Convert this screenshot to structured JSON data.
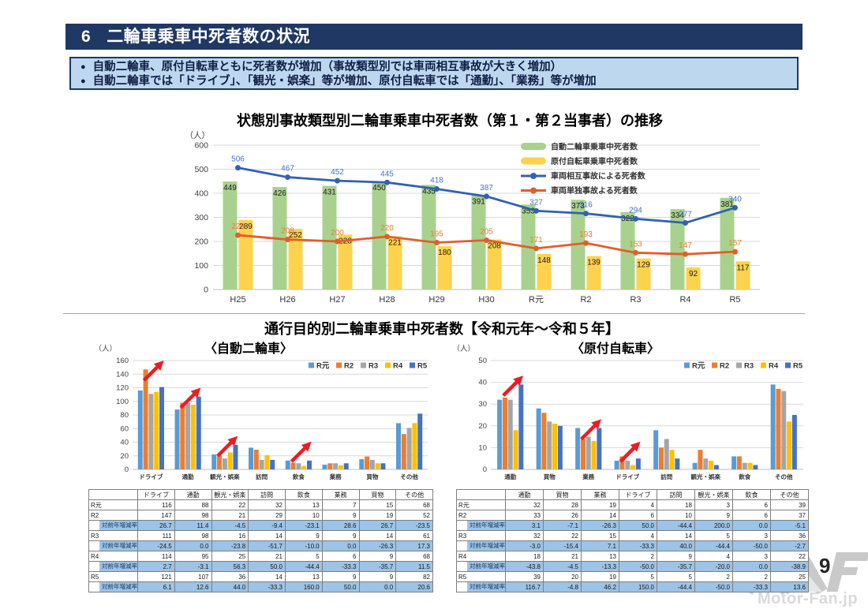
{
  "header": {
    "number": "6",
    "title": "二輪車乗車中死者数の状況"
  },
  "bullet_char": "●",
  "bullets": [
    "自動二輪車、原付自転車ともに死者数が増加（事故類型別では車両相互事故が大きく増加）",
    "自動二輪車では「ドライブ」、「観光・娯楽」等が増加、原付自転車では「通勤」、「業務」等が増加"
  ],
  "section2_title": "通行目的別二輪車乗車中死者数【令和元年～令和５年】",
  "page_number": "9",
  "watermark_text": "Motor-Fan.jp",
  "chart_data": [
    {
      "id": "trend",
      "type": "bar+line",
      "title": "状態別事故類型別二輪車乗車中死者数（第１・第２当事者）の推移",
      "unit": "（人）",
      "categories": [
        "H25",
        "H26",
        "H27",
        "H28",
        "H29",
        "H30",
        "R元",
        "R2",
        "R3",
        "R4",
        "R5"
      ],
      "ylim": [
        0,
        600
      ],
      "ytick": 100,
      "grid": true,
      "legend_position": "top-right",
      "series": [
        {
          "name": "自動二輪車乗車中死者数",
          "type": "bar",
          "color": "#A9D18E",
          "label_color": "#1a1a1a",
          "values": [
            449,
            426,
            431,
            450,
            435,
            391,
            353,
            373,
            322,
            334,
            381
          ]
        },
        {
          "name": "原付自転車乗車中死者数",
          "type": "bar",
          "color": "#FFD24D",
          "label_color": "#1a1a1a",
          "values": [
            289,
            252,
            228,
            221,
            180,
            208,
            148,
            139,
            129,
            92,
            117
          ]
        },
        {
          "name": "車両相互事故による死者数",
          "type": "line",
          "color": "#3162AE",
          "label_color": "#4472C4",
          "values": [
            506,
            467,
            452,
            445,
            418,
            387,
            327,
            316,
            294,
            277,
            340
          ]
        },
        {
          "name": "車両単独事故よる死者数",
          "type": "line",
          "color": "#E35D2B",
          "label_color": "#ED7D31",
          "values": [
            226,
            208,
            200,
            220,
            195,
            205,
            171,
            193,
            153,
            147,
            157
          ]
        }
      ]
    },
    {
      "id": "moto",
      "type": "bar",
      "title": "〈自動二輪車〉",
      "unit": "（人）",
      "categories": [
        "ドライブ",
        "通勤",
        "観光・娯楽",
        "訪問",
        "飲食",
        "業務",
        "買物",
        "その他"
      ],
      "ylim": [
        0,
        160
      ],
      "ytick": 20,
      "grid": true,
      "legend_position": "top-right",
      "arrow_categories": [
        0,
        1,
        2,
        4
      ],
      "arrow_color": "#ED1C24",
      "series": [
        {
          "name": "R元",
          "color": "#5B9BD5",
          "values": [
            116,
            88,
            22,
            32,
            13,
            7,
            15,
            68
          ]
        },
        {
          "name": "R2",
          "color": "#ED7D31",
          "values": [
            147,
            98,
            21,
            29,
            10,
            9,
            19,
            52
          ]
        },
        {
          "name": "R3",
          "color": "#A5A5A5",
          "values": [
            111,
            98,
            16,
            14,
            9,
            9,
            14,
            61
          ]
        },
        {
          "name": "R4",
          "color": "#FFC000",
          "values": [
            114,
            95,
            25,
            21,
            5,
            6,
            9,
            68
          ]
        },
        {
          "name": "R5",
          "color": "#4472C4",
          "values": [
            121,
            107,
            36,
            14,
            13,
            9,
            9,
            82
          ]
        }
      ]
    },
    {
      "id": "moped",
      "type": "bar",
      "title": "〈原付自転車〉",
      "unit": "（人）",
      "categories": [
        "通勤",
        "買物",
        "業務",
        "ドライブ",
        "訪問",
        "観光・娯楽",
        "飲食",
        "その他"
      ],
      "ylim": [
        0,
        50
      ],
      "ytick": 10,
      "grid": true,
      "legend_position": "top-right",
      "arrow_categories": [
        0,
        2,
        3
      ],
      "arrow_color": "#ED1C24",
      "series": [
        {
          "name": "R元",
          "color": "#5B9BD5",
          "values": [
            32,
            28,
            19,
            4,
            18,
            3,
            6,
            39
          ]
        },
        {
          "name": "R2",
          "color": "#ED7D31",
          "values": [
            33,
            26,
            14,
            6,
            10,
            9,
            6,
            37
          ]
        },
        {
          "name": "R3",
          "color": "#A5A5A5",
          "values": [
            32,
            22,
            15,
            4,
            14,
            5,
            3,
            36
          ]
        },
        {
          "name": "R4",
          "color": "#FFC000",
          "values": [
            18,
            21,
            13,
            2,
            9,
            4,
            3,
            22
          ]
        },
        {
          "name": "R5",
          "color": "#4472C4",
          "values": [
            39,
            20,
            19,
            5,
            5,
            2,
            2,
            25
          ]
        }
      ]
    }
  ],
  "tables": {
    "moto": {
      "columns": [
        "",
        "ドライブ",
        "通勤",
        "観光・娯楽",
        "訪問",
        "飲食",
        "業務",
        "買物",
        "その他"
      ],
      "rows": [
        {
          "label": "R元",
          "type": "count",
          "values": [
            "116",
            "88",
            "22",
            "32",
            "13",
            "7",
            "15",
            "68"
          ]
        },
        {
          "label": "R2",
          "type": "count",
          "values": [
            "147",
            "98",
            "21",
            "29",
            "10",
            "9",
            "19",
            "52"
          ]
        },
        {
          "label": "対前年増減率",
          "type": "rate",
          "values": [
            "26.7",
            "11.4",
            "-4.5",
            "-9.4",
            "-23.1",
            "28.6",
            "26.7",
            "-23.5"
          ]
        },
        {
          "label": "R3",
          "type": "count",
          "values": [
            "111",
            "98",
            "16",
            "14",
            "9",
            "9",
            "14",
            "61"
          ]
        },
        {
          "label": "対前年増減率",
          "type": "rate",
          "values": [
            "-24.5",
            "0.0",
            "-23.8",
            "-51.7",
            "-10.0",
            "0.0",
            "-26.3",
            "17.3"
          ]
        },
        {
          "label": "R4",
          "type": "count",
          "values": [
            "114",
            "95",
            "25",
            "21",
            "5",
            "6",
            "9",
            "68"
          ]
        },
        {
          "label": "対前年増減率",
          "type": "rate",
          "values": [
            "2.7",
            "-3.1",
            "56.3",
            "50.0",
            "-44.4",
            "-33.3",
            "-35.7",
            "11.5"
          ]
        },
        {
          "label": "R5",
          "type": "count",
          "values": [
            "121",
            "107",
            "36",
            "14",
            "13",
            "9",
            "9",
            "82"
          ]
        },
        {
          "label": "対前年増減率",
          "type": "rate",
          "values": [
            "6.1",
            "12.6",
            "44.0",
            "-33.3",
            "160.0",
            "50.0",
            "0.0",
            "20.6"
          ]
        }
      ]
    },
    "moped": {
      "columns": [
        "",
        "通勤",
        "買物",
        "業務",
        "ドライブ",
        "訪問",
        "観光・娯楽",
        "飲食",
        "その他"
      ],
      "rows": [
        {
          "label": "R元",
          "type": "count",
          "values": [
            "32",
            "28",
            "19",
            "4",
            "18",
            "3",
            "6",
            "39"
          ]
        },
        {
          "label": "R2",
          "type": "count",
          "values": [
            "33",
            "26",
            "14",
            "6",
            "10",
            "9",
            "6",
            "37"
          ]
        },
        {
          "label": "対前年増減率",
          "type": "rate",
          "values": [
            "3.1",
            "-7.1",
            "-26.3",
            "50.0",
            "-44.4",
            "200.0",
            "0.0",
            "-5.1"
          ]
        },
        {
          "label": "R3",
          "type": "count",
          "values": [
            "32",
            "22",
            "15",
            "4",
            "14",
            "5",
            "3",
            "36"
          ]
        },
        {
          "label": "対前年増減率",
          "type": "rate",
          "values": [
            "-3.0",
            "-15.4",
            "7.1",
            "-33.3",
            "40.0",
            "-44.4",
            "-50.0",
            "-2.7"
          ]
        },
        {
          "label": "R4",
          "type": "count",
          "values": [
            "18",
            "21",
            "13",
            "2",
            "9",
            "4",
            "3",
            "22"
          ]
        },
        {
          "label": "対前年増減率",
          "type": "rate",
          "values": [
            "-43.8",
            "-4.5",
            "-13.3",
            "-50.0",
            "-35.7",
            "-20.0",
            "0.0",
            "-38.9"
          ]
        },
        {
          "label": "R5",
          "type": "count",
          "values": [
            "39",
            "20",
            "19",
            "5",
            "5",
            "2",
            "2",
            "25"
          ]
        },
        {
          "label": "対前年増減率",
          "type": "rate",
          "values": [
            "116.7",
            "-4.8",
            "46.2",
            "150.0",
            "-44.4",
            "-50.0",
            "-33.3",
            "13.6"
          ]
        }
      ]
    }
  }
}
